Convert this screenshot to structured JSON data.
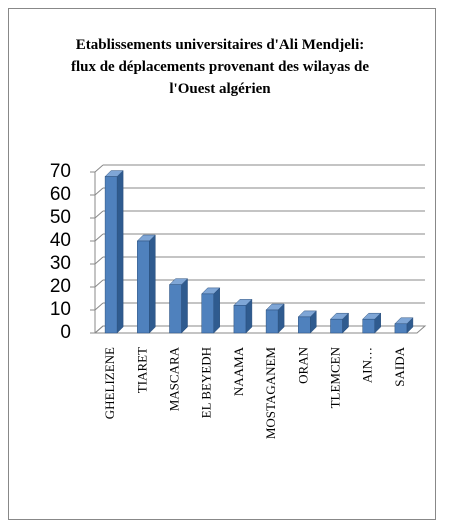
{
  "chart_data": {
    "type": "bar3d",
    "title": "Etablissements universitaires d'Ali Mendjeli: flux de déplacements provenant  des wilayas de l'Ouest algérien",
    "categories": [
      "GHELIZENE",
      "TIARET",
      "MASCARA",
      "EL BEYEDH",
      "NAAMA",
      "MOSTAGANEM",
      "ORAN",
      "TLEMCEN",
      "AIN…",
      "SAIDA"
    ],
    "values": [
      68,
      40,
      21,
      17,
      12,
      10,
      7,
      6,
      6,
      4
    ],
    "color": "#4f81bd",
    "ylim": [
      0,
      70
    ],
    "yticks": [
      0,
      10,
      20,
      30,
      40,
      50,
      60,
      70
    ],
    "grid": true
  }
}
